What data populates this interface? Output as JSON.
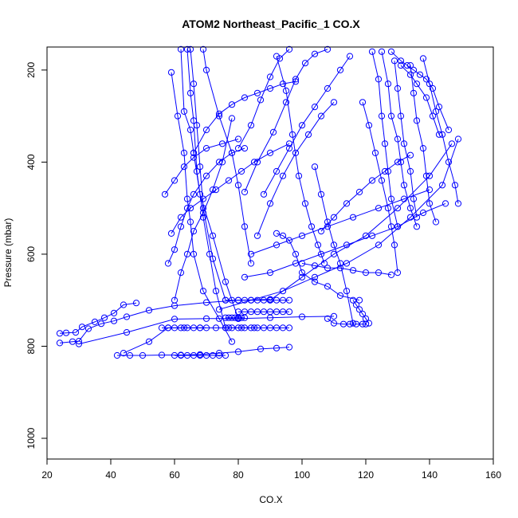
{
  "chart_data": {
    "type": "line",
    "title": "ATOM2 Northeast_Pacific_1 CO.X",
    "xlabel": "CO.X",
    "ylabel": "Pressure (mbar)",
    "xlim": [
      20,
      160
    ],
    "ylim": [
      1045,
      150
    ],
    "y_reversed": true,
    "x_ticks": [
      20,
      40,
      60,
      80,
      100,
      120,
      140,
      160
    ],
    "y_ticks": [
      200,
      400,
      600,
      800,
      1000
    ],
    "series_color": "#0000FF",
    "grid": false,
    "legend": "none",
    "series": [
      {
        "x": [
          24,
          26,
          29,
          31,
          35,
          38,
          41,
          44,
          48
        ],
        "y": [
          772,
          771,
          770,
          758,
          747,
          738,
          728,
          710,
          706
        ]
      },
      {
        "x": [
          24,
          28,
          30,
          33,
          37,
          41,
          45,
          52,
          60,
          70,
          80,
          90
        ],
        "y": [
          793,
          790,
          789,
          762,
          751,
          745,
          736,
          722,
          712,
          705,
          700,
          698
        ]
      },
      {
        "x": [
          42,
          46,
          50,
          56,
          62,
          68,
          74,
          80,
          87,
          92,
          96
        ],
        "y": [
          820,
          820,
          820,
          819,
          819,
          818,
          815,
          812,
          806,
          804,
          802
        ]
      },
      {
        "x": [
          44,
          52,
          58,
          63,
          68,
          73,
          77,
          81,
          85
        ],
        "y": [
          815,
          790,
          760,
          760,
          760,
          760,
          760,
          760,
          760
        ]
      },
      {
        "x": [
          30,
          45,
          60,
          70,
          80,
          90,
          100,
          110
        ],
        "y": [
          795,
          770,
          741,
          740,
          740,
          738,
          736,
          735
        ]
      },
      {
        "x": [
          62,
          63,
          65,
          66,
          68,
          72,
          76,
          80
        ],
        "y": [
          155,
          290,
          330,
          380,
          470,
          560,
          660,
          740
        ]
      },
      {
        "x": [
          59,
          61,
          63,
          64,
          65,
          66,
          69,
          74,
          78
        ],
        "y": [
          205,
          300,
          380,
          480,
          530,
          600,
          680,
          740,
          790
        ]
      },
      {
        "x": [
          64,
          65,
          66,
          67,
          69,
          71,
          73,
          76
        ],
        "y": [
          155,
          250,
          310,
          420,
          520,
          600,
          680,
          760
        ]
      },
      {
        "x": [
          65,
          66,
          67,
          68,
          69,
          72,
          76
        ],
        "y": [
          155,
          230,
          320,
          410,
          500,
          610,
          700
        ]
      },
      {
        "x": [
          69,
          70,
          74,
          78,
          80,
          82,
          84
        ],
        "y": [
          155,
          200,
          300,
          380,
          450,
          540,
          620
        ]
      },
      {
        "x": [
          78,
          75,
          72,
          69,
          66,
          64,
          62,
          60
        ],
        "y": [
          305,
          400,
          460,
          510,
          550,
          600,
          640,
          700
        ]
      },
      {
        "x": [
          57,
          60,
          63,
          66,
          70,
          75,
          80
        ],
        "y": [
          470,
          440,
          410,
          390,
          370,
          360,
          350
        ]
      },
      {
        "x": [
          59,
          62,
          65,
          69,
          73,
          77,
          81,
          85,
          90,
          96
        ],
        "y": [
          555,
          520,
          500,
          480,
          460,
          440,
          420,
          400,
          380,
          360
        ]
      },
      {
        "x": [
          58,
          60,
          62,
          64,
          66,
          70,
          74,
          78,
          82
        ],
        "y": [
          620,
          590,
          540,
          500,
          470,
          430,
          400,
          380,
          370
        ]
      },
      {
        "x": [
          66,
          70,
          74,
          78,
          82,
          86,
          90,
          94,
          98
        ],
        "y": [
          380,
          330,
          295,
          275,
          260,
          250,
          240,
          230,
          225
        ]
      },
      {
        "x": [
          86,
          90,
          94,
          98,
          102,
          106,
          110
        ],
        "y": [
          560,
          490,
          430,
          380,
          340,
          300,
          270
        ]
      },
      {
        "x": [
          88,
          92,
          96,
          100,
          104,
          108,
          112,
          115
        ],
        "y": [
          470,
          420,
          370,
          320,
          280,
          240,
          200,
          170
        ]
      },
      {
        "x": [
          82,
          86,
          91,
          95,
          98,
          101,
          104,
          108
        ],
        "y": [
          465,
          400,
          335,
          270,
          220,
          185,
          165,
          155
        ]
      },
      {
        "x": [
          80,
          84,
          87,
          90,
          93,
          96
        ],
        "y": [
          370,
          320,
          265,
          215,
          175,
          155
        ]
      },
      {
        "x": [
          92,
          95,
          97,
          99,
          101,
          103,
          105,
          107
        ],
        "y": [
          170,
          245,
          340,
          430,
          490,
          540,
          580,
          620
        ]
      },
      {
        "x": [
          104,
          106,
          108,
          110,
          112,
          114,
          116
        ],
        "y": [
          410,
          470,
          530,
          580,
          620,
          680,
          750
        ]
      },
      {
        "x": [
          106,
          110,
          114,
          118,
          122,
          126,
          130,
          134
        ],
        "y": [
          550,
          520,
          490,
          465,
          440,
          420,
          400,
          385
        ]
      },
      {
        "x": [
          84,
          92,
          100,
          108,
          116,
          124,
          132,
          140
        ],
        "y": [
          600,
          580,
          560,
          540,
          520,
          500,
          480,
          460
        ]
      },
      {
        "x": [
          82,
          90,
          98,
          106,
          114,
          122,
          130,
          138,
          145
        ],
        "y": [
          650,
          640,
          620,
          600,
          580,
          560,
          540,
          510,
          490
        ]
      },
      {
        "x": [
          74,
          84,
          94,
          104,
          114,
          124,
          134,
          144,
          149
        ],
        "y": [
          720,
          700,
          680,
          650,
          620,
          580,
          520,
          450,
          350
        ]
      },
      {
        "x": [
          90,
          100,
          110,
          120,
          130,
          140,
          147
        ],
        "y": [
          700,
          650,
          600,
          560,
          500,
          430,
          360
        ]
      },
      {
        "x": [
          119,
          121,
          123,
          125,
          127,
          128,
          129,
          130
        ],
        "y": [
          270,
          320,
          380,
          440,
          500,
          540,
          580,
          640
        ]
      },
      {
        "x": [
          122,
          124,
          125,
          126,
          127,
          128,
          130
        ],
        "y": [
          160,
          220,
          300,
          360,
          420,
          480,
          540
        ]
      },
      {
        "x": [
          125,
          127,
          128,
          130,
          131,
          132,
          134,
          136
        ],
        "y": [
          160,
          230,
          300,
          350,
          400,
          450,
          500,
          540
        ]
      },
      {
        "x": [
          129,
          130,
          131,
          132,
          134,
          135,
          136
        ],
        "y": [
          180,
          240,
          300,
          360,
          420,
          480,
          520
        ]
      },
      {
        "x": [
          134,
          135,
          136,
          138,
          139,
          140,
          142
        ],
        "y": [
          190,
          250,
          310,
          370,
          430,
          490,
          530
        ]
      },
      {
        "x": [
          138,
          140,
          142,
          144,
          146,
          148,
          149
        ],
        "y": [
          175,
          230,
          290,
          340,
          400,
          450,
          490
        ]
      },
      {
        "x": [
          128,
          131,
          133,
          135,
          137,
          139,
          141,
          143,
          146
        ],
        "y": [
          160,
          180,
          190,
          200,
          210,
          220,
          240,
          280,
          330
        ]
      },
      {
        "x": [
          131,
          134,
          136,
          139,
          141,
          143
        ],
        "y": [
          190,
          210,
          230,
          260,
          300,
          340
        ]
      },
      {
        "x": [
          116,
          117,
          118,
          119,
          120,
          121
        ],
        "y": [
          700,
          710,
          720,
          730,
          740,
          750
        ]
      },
      {
        "x": [
          108,
          110,
          113,
          115,
          117,
          119,
          120
        ],
        "y": [
          740,
          750,
          752,
          752,
          752,
          752,
          752
        ]
      },
      {
        "x": [
          76,
          78,
          80,
          82,
          84,
          86,
          88,
          90,
          92,
          94,
          96
        ],
        "y": [
          700,
          700,
          700,
          700,
          700,
          700,
          700,
          700,
          700,
          700,
          700
        ]
      },
      {
        "x": [
          76,
          78,
          80,
          82,
          84,
          86,
          88,
          90,
          92,
          94,
          96
        ],
        "y": [
          760,
          760,
          760,
          760,
          760,
          760,
          760,
          760,
          760,
          760,
          760
        ]
      },
      {
        "x": [
          76,
          77,
          78,
          79,
          80,
          81,
          82
        ],
        "y": [
          738,
          738,
          738,
          738,
          738,
          738,
          738
        ]
      },
      {
        "x": [
          80,
          82,
          84,
          86,
          88,
          90,
          92,
          94,
          96
        ],
        "y": [
          725,
          725,
          725,
          725,
          725,
          725,
          725,
          725,
          725
        ]
      },
      {
        "x": [
          92,
          94,
          96,
          98,
          100,
          104,
          108,
          112,
          118
        ],
        "y": [
          555,
          560,
          570,
          600,
          640,
          660,
          670,
          690,
          700
        ]
      },
      {
        "x": [
          100,
          104,
          108,
          112,
          116,
          120,
          124,
          128
        ],
        "y": [
          620,
          625,
          630,
          630,
          635,
          640,
          640,
          645
        ]
      },
      {
        "x": [
          56,
          58,
          60,
          62,
          64,
          66,
          68,
          70
        ],
        "y": [
          760,
          760,
          760,
          760,
          760,
          760,
          760,
          760
        ]
      },
      {
        "x": [
          60,
          62,
          64,
          66,
          68,
          70,
          72,
          74,
          76
        ],
        "y": [
          820,
          820,
          820,
          820,
          820,
          820,
          820,
          820,
          820
        ]
      }
    ]
  }
}
